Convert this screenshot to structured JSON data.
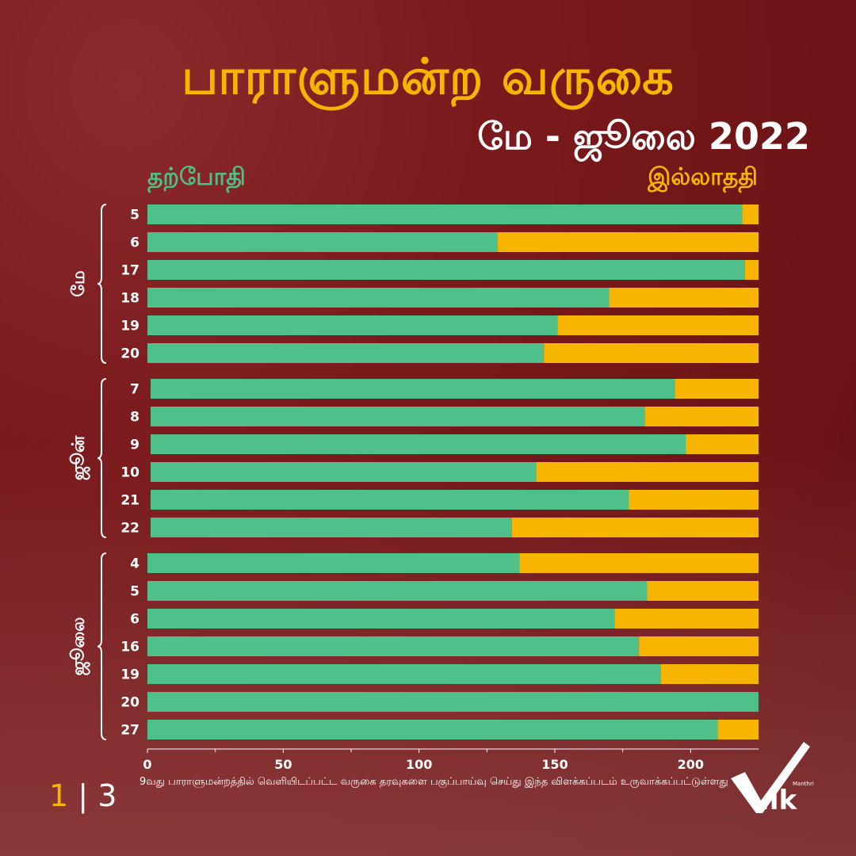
{
  "header": {
    "title": "பாராளுமன்ற வருகை",
    "subtitle": "மே - ஜூலை 2022"
  },
  "legend": {
    "present": "தற்போதி",
    "absent": "இல்லாததி"
  },
  "colors": {
    "present": "#4fc08a",
    "absent": "#f7b500",
    "background": "#7a1a1c",
    "title": "#f7b500"
  },
  "chart_data": {
    "type": "bar",
    "orientation": "horizontal",
    "stacked": true,
    "total": 225,
    "xlim": [
      0,
      225
    ],
    "xticks": [
      0,
      50,
      100,
      150,
      200
    ],
    "groups": [
      {
        "label": "மே",
        "categories": [
          "5",
          "6",
          "17",
          "18",
          "19",
          "20"
        ]
      },
      {
        "label": "ஜூன்",
        "categories": [
          "7",
          "8",
          "9",
          "10",
          "21",
          "22"
        ]
      },
      {
        "label": "ஜூலை",
        "categories": [
          "4",
          "5",
          "6",
          "16",
          "19",
          "20",
          "27"
        ]
      }
    ],
    "series": [
      {
        "name": "தற்போதி",
        "values": [
          219,
          129,
          220,
          170,
          151,
          146,
          193,
          182,
          197,
          142,
          176,
          133,
          137,
          184,
          172,
          181,
          189,
          225,
          210
        ]
      },
      {
        "name": "இல்லாததி",
        "values": [
          6,
          96,
          5,
          55,
          74,
          79,
          32,
          43,
          28,
          83,
          49,
          92,
          88,
          41,
          53,
          44,
          36,
          0,
          15
        ]
      }
    ]
  },
  "footer": {
    "note": "9வது பாராளுமன்றத்தில் வெளியிடப்பட்ட வருகை தரவுகளை பகுப்பாய்வு செய்து இந்த விளக்கப்படம் உருவாக்கப்பட்டுள்ளது",
    "page_current": "1",
    "page_separator": "|",
    "page_total": "3"
  },
  "logo": {
    "text": ".lk",
    "small": "Manthri"
  }
}
